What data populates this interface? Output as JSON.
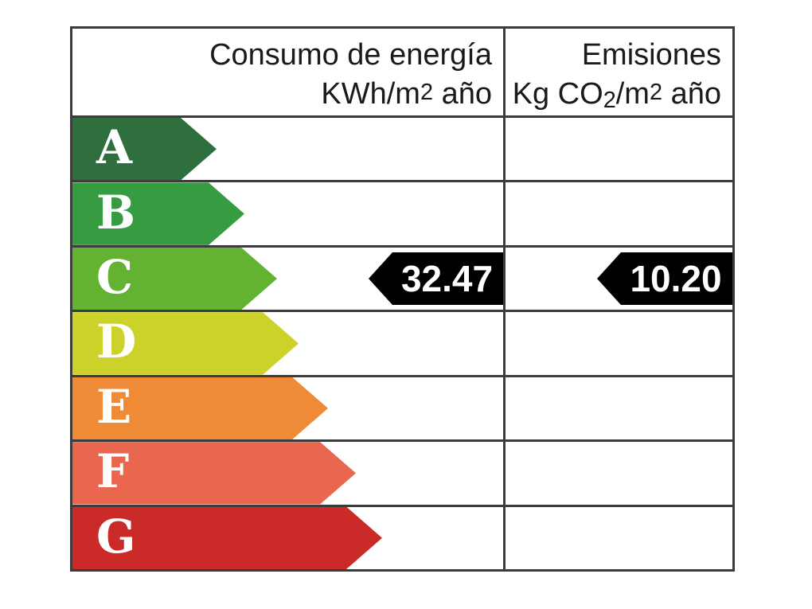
{
  "header": {
    "consumption": {
      "line1": "Consumo de energía",
      "line2_base": "KWh/m",
      "line2_exp": "2",
      "line2_tail": " año"
    },
    "emissions": {
      "line1": "Emisiones",
      "line2_base": "Kg CO",
      "line2_sub": "2",
      "line2_mid": "/m",
      "line2_exp": "2",
      "line2_tail": " año"
    }
  },
  "scale": {
    "rows": [
      {
        "letter": "A",
        "color": "#2e6f3d"
      },
      {
        "letter": "B",
        "color": "#369b41"
      },
      {
        "letter": "C",
        "color": "#63b232"
      },
      {
        "letter": "D",
        "color": "#cdd22b"
      },
      {
        "letter": "E",
        "color": "#ef8a36"
      },
      {
        "letter": "F",
        "color": "#e9674f"
      },
      {
        "letter": "G",
        "color": "#cb2b28"
      }
    ]
  },
  "indicators": {
    "rated_letter": "C",
    "consumption_value": "32.47",
    "emissions_value": "10.20",
    "arrow_color": "#000000",
    "value_text_color": "#ffffff"
  },
  "chart_data": {
    "type": "bar",
    "categories": [
      "A",
      "B",
      "C",
      "D",
      "E",
      "F",
      "G"
    ],
    "bar_colors": [
      "#2e6f3d",
      "#369b41",
      "#63b232",
      "#cdd22b",
      "#ef8a36",
      "#e9674f",
      "#cb2b28"
    ],
    "relative_bar_lengths": [
      181,
      216,
      257,
      284,
      321,
      356,
      389
    ],
    "columns": [
      "Consumo de energía KWh/m2 año",
      "Emisiones Kg CO2/m2 año"
    ],
    "indicated_rating": "C",
    "series": [
      {
        "name": "Consumo de energía",
        "unit": "KWh/m2 año",
        "value": 32.47,
        "rating": "C"
      },
      {
        "name": "Emisiones",
        "unit": "Kg CO2/m2 año",
        "value": 10.2,
        "rating": "C"
      }
    ],
    "legend_position": "none",
    "grid": false
  }
}
